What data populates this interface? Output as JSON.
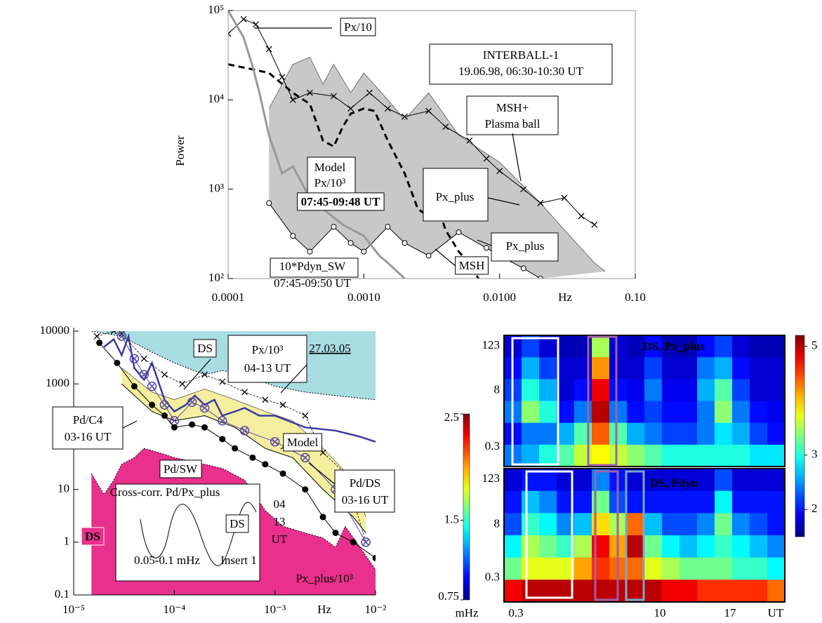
{
  "chart_data": [
    {
      "type": "line",
      "log_x": true,
      "log_y": true,
      "ylabel": "Power",
      "x_unit": "Hz",
      "xlim": [
        0.0001,
        0.1
      ],
      "ylim": [
        100,
        100000
      ],
      "xticks": [
        0.0001,
        {
          "value": 0.001,
          "label": "0.0010"
        },
        {
          "value": 0.01,
          "label": "0.0100"
        },
        {
          "value": 0.1,
          "label": "0.10"
        }
      ],
      "yticks": [
        {
          "value": 100,
          "label": "10²"
        },
        {
          "value": 1000,
          "label": "10³"
        },
        {
          "value": 10000,
          "label": "10⁴"
        },
        {
          "value": 100000,
          "label": "10⁵"
        }
      ],
      "bands": [
        {
          "color": "#c8c8c8",
          "x_upper": [
            0.0002,
            0.0003,
            0.0004,
            0.0005,
            0.0006,
            0.0008,
            0.001,
            0.0015,
            0.002,
            0.003,
            0.005,
            0.008,
            0.01,
            0.02,
            0.03,
            0.05,
            0.06
          ],
          "upper": [
            8000,
            25000,
            30000,
            15000,
            25000,
            12000,
            20000,
            10000,
            6000,
            12000,
            4000,
            2500,
            2000,
            700,
            350,
            150,
            120
          ],
          "x_lower": [
            0.0002,
            0.0003,
            0.0004,
            0.0006,
            0.0008,
            0.001,
            0.0015,
            0.002,
            0.003,
            0.005,
            0.008,
            0.01,
            0.015,
            0.02
          ],
          "lower": [
            700,
            300,
            200,
            380,
            250,
            200,
            380,
            250,
            180,
            330,
            220,
            180,
            130,
            100
          ],
          "lower_marker": "circle"
        }
      ],
      "series": [
        {
          "color": "#000000",
          "width": 1,
          "style": "solid",
          "marker": "x",
          "x": [
            0.0001,
            0.00013,
            0.00016,
            0.0002,
            0.00025,
            0.0003,
            0.0004,
            0.0006,
            0.0008,
            0.0011,
            0.0015,
            0.002,
            0.003,
            0.004,
            0.006,
            0.008,
            0.01,
            0.015,
            0.02,
            0.03,
            0.04,
            0.05
          ],
          "values": [
            55000,
            80000,
            70000,
            37000,
            18000,
            10000,
            12000,
            11000,
            8000,
            12000,
            8000,
            6500,
            7500,
            5000,
            3500,
            2200,
            1600,
            1000,
            700,
            800,
            500,
            400
          ]
        },
        {
          "color": "#000000",
          "width": 3,
          "style": "dashed",
          "x": [
            0.0001,
            0.00015,
            0.0002,
            0.0003,
            0.0004,
            0.0005,
            0.0006,
            0.0007,
            0.0008,
            0.001,
            0.0012,
            0.0015,
            0.002,
            0.0025,
            0.003,
            0.0035,
            0.004,
            0.005,
            0.006,
            0.007
          ],
          "values": [
            25000,
            22000,
            20000,
            12000,
            9000,
            3500,
            3000,
            5000,
            7000,
            8000,
            7500,
            3500,
            1500,
            600,
            500,
            650,
            350,
            200,
            150,
            100
          ]
        },
        {
          "color": "#999999",
          "width": 3,
          "style": "solid",
          "x": [
            0.0001,
            0.00013,
            0.00015,
            0.00017,
            0.0002,
            0.00025,
            0.0003,
            0.0004,
            0.0005,
            0.0007,
            0.001,
            0.0013,
            0.0015,
            0.002
          ],
          "values": [
            100000,
            50000,
            25000,
            12000,
            4000,
            1500,
            1800,
            800,
            600,
            400,
            300,
            180,
            150,
            100
          ]
        }
      ],
      "annotations": [
        "Px/10",
        "INTERBALL-1",
        "19.06.98, 06:30-10:30 UT",
        "MSH+",
        "Plasma ball",
        "Model",
        "Px/10³",
        "07:45-09:48 UT",
        "Px_plus",
        "Px_plus",
        "MSH",
        "10*Pdyn_SW",
        "07:45-09:50 UT"
      ]
    },
    {
      "type": "line",
      "log_x": true,
      "log_y": true,
      "x_unit": "Hz",
      "xlim": [
        1e-05,
        0.01
      ],
      "ylim": [
        0.1,
        10000
      ],
      "xticks": [
        {
          "value": 1e-05,
          "label": "10⁻⁵"
        },
        {
          "value": 0.0001,
          "label": "10⁻⁴"
        },
        {
          "value": 0.001,
          "label": "10⁻³"
        },
        {
          "value": 0.01,
          "label": "10⁻²"
        }
      ],
      "yticks": [
        0.1,
        1,
        10,
        100,
        1000,
        10000
      ],
      "areas": [
        {
          "color": "#a8dde3",
          "fill_to": "top",
          "x": [
            1.5e-05,
            3e-05,
            6e-05,
            0.0001,
            0.0002,
            0.0003,
            0.0006,
            0.001,
            0.002,
            0.004,
            0.01
          ],
          "values": [
            10000,
            8000,
            4000,
            2500,
            1500,
            1800,
            1300,
            900,
            700,
            600,
            500
          ]
        },
        {
          "color": "#e8308c",
          "fill_to": "bottom",
          "x": [
            1.5e-05,
            2e-05,
            2.5e-05,
            3e-05,
            4e-05,
            5e-05,
            7e-05,
            0.0001,
            0.0002,
            0.0003,
            0.0005,
            0.0008,
            0.0012,
            0.002,
            0.003,
            0.004,
            0.005,
            0.007,
            0.01
          ],
          "values": [
            20,
            8,
            15,
            30,
            40,
            60,
            50,
            40,
            30,
            25,
            15,
            4,
            2,
            1.5,
            1.2,
            0.8,
            2,
            0.8,
            0.3
          ]
        }
      ],
      "bands": [
        {
          "color": "#f3ef9e",
          "x_upper": [
            3e-05,
            6e-05,
            0.0001,
            0.0002,
            0.0004,
            0.0008,
            0.0015,
            0.003,
            0.006,
            0.008
          ],
          "upper": [
            2000,
            700,
            500,
            800,
            500,
            300,
            200,
            60,
            15,
            3
          ],
          "x_lower": [
            3e-05,
            6e-05,
            0.0001,
            0.0002,
            0.0004,
            0.0008,
            0.0015,
            0.003,
            0.006,
            0.008
          ],
          "lower": [
            1000,
            300,
            200,
            250,
            150,
            60,
            40,
            10,
            3,
            1.5
          ]
        }
      ],
      "series": [
        {
          "color": "#3a3aa0",
          "width": 2.5,
          "style": "solid",
          "x": [
            2e-05,
            2.5e-05,
            3e-05,
            3.5e-05,
            4e-05,
            5e-05,
            6e-05,
            8e-05,
            0.0001,
            0.00013,
            0.00016,
            0.0002,
            0.00025,
            0.0003,
            0.0004,
            0.0005,
            0.0007,
            0.001,
            0.002,
            0.004,
            0.007,
            0.01
          ],
          "values": [
            5000,
            7000,
            3500,
            8000,
            2000,
            1200,
            2500,
            500,
            300,
            400,
            600,
            400,
            500,
            250,
            300,
            350,
            250,
            250,
            150,
            130,
            100,
            80
          ]
        },
        {
          "color": "#000000",
          "width": 0.8,
          "style": "dotted",
          "marker": "x",
          "x": [
            1.7e-05,
            2.5e-05,
            3e-05,
            5e-05,
            8e-05,
            0.00012,
            0.0002,
            0.0003,
            0.0005,
            0.0008,
            0.0012,
            0.002,
            0.003,
            0.005,
            0.008
          ],
          "values": [
            8000,
            10000,
            9000,
            3000,
            1500,
            1000,
            1500,
            1100,
            700,
            500,
            400,
            250,
            50,
            20,
            1
          ]
        },
        {
          "color": "#5a4aa8",
          "width": 1,
          "style": "solid",
          "marker": "otimes",
          "x": [
            3e-05,
            4e-05,
            5e-05,
            6e-05,
            8e-05,
            0.0001,
            0.00015,
            0.0002,
            0.0003,
            0.0005,
            0.001,
            0.002,
            0.004,
            0.008
          ],
          "values": [
            8000,
            3000,
            1500,
            900,
            400,
            200,
            450,
            350,
            200,
            130,
            80,
            40,
            10,
            1
          ]
        },
        {
          "color": "#000000",
          "width": 1,
          "style": "solid",
          "marker": "dot",
          "x": [
            1.8e-05,
            2.7e-05,
            4e-05,
            6e-05,
            8e-05,
            0.0001,
            0.00015,
            0.0002,
            0.0003,
            0.0004,
            0.0006,
            0.0008,
            0.0012,
            0.002,
            0.003,
            0.004,
            0.006,
            0.01
          ],
          "values": [
            6000,
            2500,
            900,
            400,
            250,
            150,
            170,
            150,
            90,
            60,
            40,
            30,
            20,
            10,
            3,
            1.5,
            1,
            0.5
          ]
        }
      ],
      "annotations": [
        "DS",
        "Px/10³",
        "04-13 UT",
        "27.03.05",
        "Pd/C4",
        "03-16 UT",
        "Pd/SW",
        "Model",
        "Pd/DS",
        "03-16 UT",
        "DS",
        "04",
        "13",
        "UT",
        "Px_plus/10³",
        "Cross-corr. Pd/Px_plus",
        "DS",
        "0.05-0.1 mHz",
        "Insert 1"
      ]
    },
    {
      "type": "heatmap",
      "xtick_labels": [
        "0.3",
        "10",
        "17",
        "UT"
      ],
      "ytick_labels": [
        "123",
        "8",
        "0.3"
      ],
      "colorbars": [
        {
          "lim": [
            1.5,
            5.2
          ],
          "ticks": [
            2,
            3,
            5
          ]
        },
        {
          "lim": [
            0.75,
            2.5
          ],
          "ticks": [
            0.75,
            1.5,
            2.5
          ],
          "label": "mHz"
        }
      ],
      "panels": [
        {
          "title": "DS, Px_plus",
          "colorbar": 0,
          "z": [
            [
              1.8,
              2.2,
              1.8,
              1.7,
              1.7,
              3.5,
              1.8,
              1.7,
              2.0,
              1.7,
              1.7,
              2.0,
              2.2,
              1.8,
              1.7,
              1.7
            ],
            [
              2.0,
              2.6,
              2.2,
              1.8,
              1.8,
              4.2,
              1.8,
              1.8,
              2.2,
              1.8,
              1.8,
              2.4,
              2.6,
              2.0,
              1.8,
              1.8
            ],
            [
              2.2,
              3.0,
              2.6,
              1.8,
              2.0,
              4.8,
              2.0,
              1.9,
              2.4,
              1.9,
              1.9,
              2.6,
              3.2,
              2.2,
              1.8,
              1.8
            ],
            [
              2.4,
              3.4,
              3.0,
              2.0,
              2.4,
              5.0,
              2.4,
              2.0,
              2.2,
              2.0,
              2.0,
              2.4,
              3.4,
              2.4,
              2.0,
              1.9
            ],
            [
              2.0,
              2.4,
              2.4,
              2.6,
              3.2,
              4.4,
              3.2,
              2.6,
              2.4,
              2.2,
              2.2,
              2.4,
              2.8,
              2.6,
              2.2,
              2.0
            ],
            [
              2.4,
              2.6,
              3.0,
              3.2,
              3.6,
              3.8,
              3.6,
              3.4,
              3.2,
              3.0,
              3.0,
              3.0,
              3.0,
              3.0,
              2.8,
              2.8
            ]
          ]
        },
        {
          "title": "DS, Pdyn",
          "colorbar": 1,
          "z": [
            [
              0.9,
              1.0,
              1.0,
              0.9,
              0.9,
              1.2,
              1.0,
              0.9,
              0.9,
              0.9,
              0.9,
              0.9,
              1.1,
              0.9,
              0.9,
              0.9
            ],
            [
              1.0,
              1.3,
              1.2,
              1.0,
              1.0,
              1.6,
              1.1,
              1.0,
              1.0,
              1.0,
              1.0,
              1.0,
              1.4,
              1.0,
              1.0,
              1.0
            ],
            [
              1.1,
              1.5,
              1.4,
              1.2,
              1.3,
              1.9,
              1.7,
              2.1,
              1.3,
              1.1,
              1.1,
              1.2,
              1.6,
              1.2,
              1.1,
              1.0
            ],
            [
              1.4,
              1.7,
              1.6,
              1.5,
              1.7,
              2.3,
              2.0,
              2.4,
              1.6,
              1.4,
              1.3,
              1.4,
              1.5,
              1.4,
              1.3,
              1.2
            ],
            [
              1.6,
              1.8,
              1.8,
              1.8,
              2.0,
              2.2,
              2.1,
              2.1,
              1.8,
              1.7,
              1.6,
              1.6,
              1.6,
              1.5,
              1.5,
              1.4
            ],
            [
              2.3,
              2.4,
              2.4,
              2.4,
              2.4,
              2.4,
              2.4,
              2.4,
              2.4,
              2.3,
              2.3,
              2.2,
              2.2,
              2.2,
              2.2,
              2.1
            ]
          ]
        }
      ]
    }
  ]
}
